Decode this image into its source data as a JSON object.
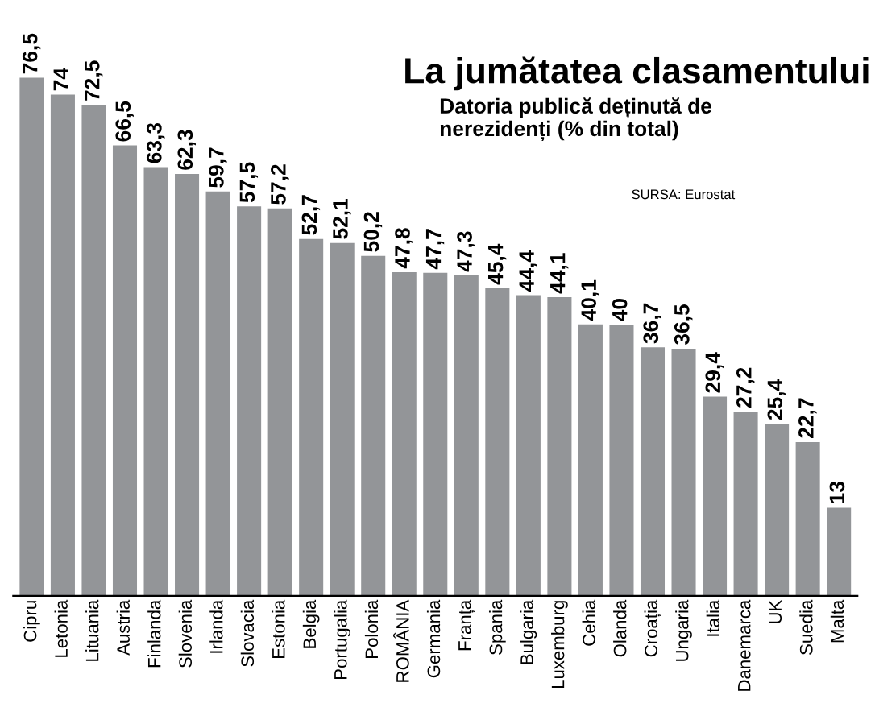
{
  "chart_data": {
    "type": "bar",
    "title": "La jumătatea clasamentului",
    "subtitle": "Datoria publică deținută de\nnerezidenți (% din total)",
    "annotations": [
      "SURSA: Eurostat"
    ],
    "categories": [
      "Cipru",
      "Letonia",
      "Lituania",
      "Austria",
      "Finlanda",
      "Slovenia",
      "Irlanda",
      "Slovacia",
      "Estonia",
      "Belgia",
      "Portugalia",
      "Polonia",
      "ROMÂNIA",
      "Germania",
      "Franța",
      "Spania",
      "Bulgaria",
      "Luxemburg",
      "Cehia",
      "Olanda",
      "Croația",
      "Ungaria",
      "Italia",
      "Danemarca",
      "UK",
      "Suedia",
      "Malta"
    ],
    "values": [
      76.5,
      74,
      72.5,
      66.5,
      63.3,
      62.3,
      59.7,
      57.5,
      57.2,
      52.7,
      52.1,
      50.2,
      47.8,
      47.7,
      47.3,
      45.4,
      44.4,
      44.1,
      40.1,
      40,
      36.7,
      36.5,
      29.4,
      27.2,
      25.4,
      22.7,
      13
    ],
    "value_labels": [
      "76,5",
      "74",
      "72,5",
      "66,5",
      "63,3",
      "62,3",
      "59,7",
      "57,5",
      "57,2",
      "52,7",
      "52,1",
      "50,2",
      "47,8",
      "47,7",
      "47,3",
      "45,4",
      "44,4",
      "44,1",
      "40,1",
      "40",
      "36,7",
      "36,5",
      "29,4",
      "27,2",
      "25,4",
      "22,7",
      "13"
    ],
    "color": "#939598",
    "tick_labels": "x",
    "grid": false
  }
}
